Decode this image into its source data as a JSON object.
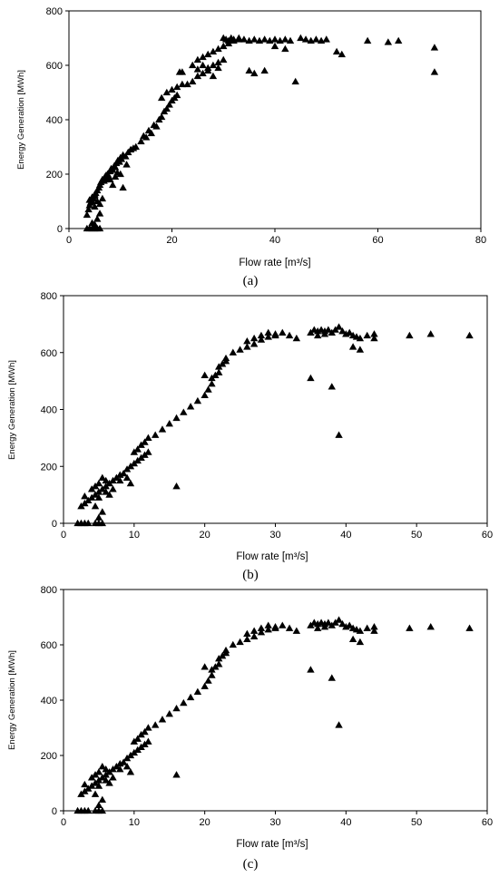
{
  "chart_data": [
    {
      "type": "scatter",
      "caption": "(a)",
      "xlabel": "Flow rate [m³/s]",
      "ylabel": "Energy Generation [MWh]",
      "xlim": [
        0,
        80
      ],
      "ylim": [
        0,
        800
      ],
      "xticks": [
        "0",
        "20",
        "40",
        "60",
        "80"
      ],
      "yticks": [
        "0",
        "200",
        "400",
        "600",
        "800"
      ],
      "grid": false,
      "marker": "triangle",
      "points": [
        [
          3.5,
          0
        ],
        [
          4,
          0
        ],
        [
          4.5,
          0
        ],
        [
          5,
          0
        ],
        [
          5.5,
          0
        ],
        [
          6,
          0
        ],
        [
          5,
          15
        ],
        [
          5.5,
          35
        ],
        [
          6,
          55
        ],
        [
          4.5,
          20
        ],
        [
          3.5,
          50
        ],
        [
          3.8,
          70
        ],
        [
          4,
          85
        ],
        [
          4.2,
          95
        ],
        [
          4.5,
          100
        ],
        [
          4.8,
          110
        ],
        [
          5,
          120
        ],
        [
          5.2,
          130
        ],
        [
          5.5,
          140
        ],
        [
          5.8,
          150
        ],
        [
          6,
          160
        ],
        [
          6.2,
          170
        ],
        [
          6.5,
          180
        ],
        [
          4,
          105
        ],
        [
          4.5,
          115
        ],
        [
          5,
          125
        ],
        [
          5.5,
          100
        ],
        [
          6,
          90
        ],
        [
          6.5,
          110
        ],
        [
          5,
          80
        ],
        [
          7,
          180
        ],
        [
          7.2,
          195
        ],
        [
          7.5,
          200
        ],
        [
          7.8,
          190
        ],
        [
          8,
          210
        ],
        [
          8.2,
          220
        ],
        [
          8.5,
          215
        ],
        [
          8.8,
          230
        ],
        [
          9,
          225
        ],
        [
          9.2,
          240
        ],
        [
          9.5,
          250
        ],
        [
          9.8,
          245
        ],
        [
          10,
          260
        ],
        [
          10.2,
          255
        ],
        [
          10.5,
          270
        ],
        [
          11,
          265
        ],
        [
          11.5,
          280
        ],
        [
          12,
          290
        ],
        [
          12.5,
          295
        ],
        [
          13,
          300
        ],
        [
          8,
          180
        ],
        [
          9,
          190
        ],
        [
          10,
          200
        ],
        [
          10.5,
          150
        ],
        [
          8.5,
          160
        ],
        [
          7,
          190
        ],
        [
          6.8,
          175
        ],
        [
          7.6,
          185
        ],
        [
          9.4,
          205
        ],
        [
          11.2,
          235
        ],
        [
          14,
          320
        ],
        [
          14.5,
          340
        ],
        [
          15,
          335
        ],
        [
          15.5,
          360
        ],
        [
          16,
          350
        ],
        [
          16.5,
          380
        ],
        [
          17,
          375
        ],
        [
          17.5,
          400
        ],
        [
          18,
          410
        ],
        [
          18.5,
          430
        ],
        [
          19,
          440
        ],
        [
          19.5,
          455
        ],
        [
          20,
          470
        ],
        [
          20.5,
          480
        ],
        [
          21,
          490
        ],
        [
          18,
          480
        ],
        [
          19,
          500
        ],
        [
          20,
          510
        ],
        [
          21,
          520
        ],
        [
          22,
          530
        ],
        [
          21.5,
          575
        ],
        [
          22,
          575
        ],
        [
          23,
          530
        ],
        [
          24,
          540
        ],
        [
          25,
          560
        ],
        [
          26,
          570
        ],
        [
          27,
          590
        ],
        [
          28,
          600
        ],
        [
          29,
          610
        ],
        [
          30,
          620
        ],
        [
          24,
          600
        ],
        [
          25,
          620
        ],
        [
          26,
          630
        ],
        [
          27,
          640
        ],
        [
          28,
          650
        ],
        [
          29,
          660
        ],
        [
          30,
          670
        ],
        [
          31,
          680
        ],
        [
          32,
          690
        ],
        [
          33,
          695
        ],
        [
          30,
          700
        ],
        [
          30.5,
          695
        ],
        [
          31,
          690
        ],
        [
          31.5,
          700
        ],
        [
          32,
          695
        ],
        [
          33,
          700
        ],
        [
          34,
          695
        ],
        [
          35,
          690
        ],
        [
          36,
          695
        ],
        [
          37,
          690
        ],
        [
          38,
          695
        ],
        [
          39,
          690
        ],
        [
          40,
          695
        ],
        [
          41,
          690
        ],
        [
          42,
          695
        ],
        [
          43,
          690
        ],
        [
          45,
          700
        ],
        [
          46,
          695
        ],
        [
          47,
          690
        ],
        [
          48,
          695
        ],
        [
          49,
          690
        ],
        [
          50,
          695
        ],
        [
          52,
          650
        ],
        [
          53,
          640
        ],
        [
          58,
          690
        ],
        [
          62,
          685
        ],
        [
          64,
          690
        ],
        [
          71,
          665
        ],
        [
          71,
          575
        ],
        [
          44,
          540
        ],
        [
          35,
          580
        ],
        [
          36,
          570
        ],
        [
          38,
          580
        ],
        [
          40,
          670
        ],
        [
          42,
          660
        ],
        [
          27,
          580
        ],
        [
          28,
          560
        ],
        [
          29,
          590
        ],
        [
          26,
          600
        ],
        [
          25,
          585
        ]
      ]
    },
    {
      "type": "scatter",
      "caption": "(b)",
      "xlabel": "Flow rate [m³/s]",
      "ylabel": "Energy Generation [MWh]",
      "xlim": [
        0,
        60
      ],
      "ylim": [
        0,
        800
      ],
      "xticks": [
        "0",
        "10",
        "20",
        "30",
        "40",
        "50",
        "60"
      ],
      "yticks": [
        "0",
        "200",
        "400",
        "600",
        "800"
      ],
      "grid": false,
      "marker": "triangle",
      "points": [
        [
          2,
          0
        ],
        [
          2.5,
          0
        ],
        [
          3,
          0
        ],
        [
          3.5,
          0
        ],
        [
          4.5,
          0
        ],
        [
          5,
          0
        ],
        [
          5.5,
          0
        ],
        [
          5,
          20
        ],
        [
          5.5,
          40
        ],
        [
          4.5,
          60
        ],
        [
          2.5,
          60
        ],
        [
          3,
          70
        ],
        [
          3.5,
          80
        ],
        [
          4,
          90
        ],
        [
          4.5,
          100
        ],
        [
          5,
          110
        ],
        [
          5.5,
          120
        ],
        [
          6,
          130
        ],
        [
          6.5,
          140
        ],
        [
          7,
          150
        ],
        [
          3,
          95
        ],
        [
          4,
          120
        ],
        [
          5,
          140
        ],
        [
          5.5,
          160
        ],
        [
          6,
          110
        ],
        [
          6.5,
          100
        ],
        [
          7,
          120
        ],
        [
          4.5,
          130
        ],
        [
          5,
          90
        ],
        [
          6,
          150
        ],
        [
          7.5,
          160
        ],
        [
          8,
          170
        ],
        [
          8.5,
          175
        ],
        [
          9,
          190
        ],
        [
          9.5,
          200
        ],
        [
          10,
          210
        ],
        [
          10.5,
          220
        ],
        [
          11,
          230
        ],
        [
          11.5,
          240
        ],
        [
          12,
          250
        ],
        [
          8,
          150
        ],
        [
          9,
          160
        ],
        [
          9.5,
          140
        ],
        [
          10,
          250
        ],
        [
          10.5,
          260
        ],
        [
          11,
          275
        ],
        [
          11.5,
          285
        ],
        [
          12,
          300
        ],
        [
          13,
          310
        ],
        [
          14,
          330
        ],
        [
          15,
          350
        ],
        [
          16,
          370
        ],
        [
          17,
          390
        ],
        [
          18,
          410
        ],
        [
          19,
          430
        ],
        [
          20,
          450
        ],
        [
          20.5,
          470
        ],
        [
          21,
          490
        ],
        [
          21.5,
          520
        ],
        [
          22,
          530
        ],
        [
          22.5,
          560
        ],
        [
          23,
          580
        ],
        [
          24,
          600
        ],
        [
          25,
          610
        ],
        [
          26,
          620
        ],
        [
          27,
          630
        ],
        [
          28,
          645
        ],
        [
          29,
          655
        ],
        [
          30,
          665
        ],
        [
          31,
          670
        ],
        [
          16,
          130
        ],
        [
          20,
          520
        ],
        [
          21,
          510
        ],
        [
          22,
          550
        ],
        [
          23,
          570
        ],
        [
          26,
          640
        ],
        [
          27,
          650
        ],
        [
          28,
          660
        ],
        [
          29,
          670
        ],
        [
          30,
          660
        ],
        [
          32,
          660
        ],
        [
          33,
          650
        ],
        [
          35,
          670
        ],
        [
          35.5,
          680
        ],
        [
          36,
          675
        ],
        [
          36.5,
          680
        ],
        [
          37,
          675
        ],
        [
          37.5,
          680
        ],
        [
          38,
          670
        ],
        [
          38.5,
          680
        ],
        [
          39,
          690
        ],
        [
          39.5,
          675
        ],
        [
          40,
          665
        ],
        [
          40.5,
          670
        ],
        [
          41,
          660
        ],
        [
          41.5,
          655
        ],
        [
          42,
          650
        ],
        [
          43,
          660
        ],
        [
          44,
          665
        ],
        [
          44,
          650
        ],
        [
          35,
          510
        ],
        [
          38,
          480
        ],
        [
          39,
          310
        ],
        [
          41,
          620
        ],
        [
          42,
          610
        ],
        [
          49,
          660
        ],
        [
          52,
          665
        ],
        [
          57.5,
          660
        ],
        [
          36,
          660
        ],
        [
          37,
          665
        ]
      ]
    },
    {
      "type": "scatter",
      "caption": "(c)",
      "xlabel": "Flow rate [m³/s]",
      "ylabel": "Energy Generation [MWh]",
      "xlim": [
        0,
        60
      ],
      "ylim": [
        0,
        800
      ],
      "xticks": [
        "0",
        "10",
        "20",
        "30",
        "40",
        "50",
        "60"
      ],
      "yticks": [
        "0",
        "200",
        "400",
        "600",
        "800"
      ],
      "grid": false,
      "marker": "triangle",
      "points": [
        [
          2,
          0
        ],
        [
          2.5,
          0
        ],
        [
          3,
          0
        ],
        [
          3.5,
          0
        ],
        [
          4.5,
          0
        ],
        [
          5,
          0
        ],
        [
          5.5,
          0
        ],
        [
          5,
          20
        ],
        [
          5.5,
          40
        ],
        [
          4.5,
          60
        ],
        [
          2.5,
          60
        ],
        [
          3,
          70
        ],
        [
          3.5,
          80
        ],
        [
          4,
          90
        ],
        [
          4.5,
          100
        ],
        [
          5,
          110
        ],
        [
          5.5,
          120
        ],
        [
          6,
          130
        ],
        [
          6.5,
          140
        ],
        [
          7,
          150
        ],
        [
          3,
          95
        ],
        [
          4,
          120
        ],
        [
          5,
          140
        ],
        [
          5.5,
          160
        ],
        [
          6,
          110
        ],
        [
          6.5,
          100
        ],
        [
          7,
          120
        ],
        [
          4.5,
          130
        ],
        [
          5,
          90
        ],
        [
          6,
          150
        ],
        [
          7.5,
          160
        ],
        [
          8,
          170
        ],
        [
          8.5,
          175
        ],
        [
          9,
          190
        ],
        [
          9.5,
          200
        ],
        [
          10,
          210
        ],
        [
          10.5,
          220
        ],
        [
          11,
          230
        ],
        [
          11.5,
          240
        ],
        [
          12,
          250
        ],
        [
          8,
          150
        ],
        [
          9,
          160
        ],
        [
          9.5,
          140
        ],
        [
          10,
          250
        ],
        [
          10.5,
          260
        ],
        [
          11,
          275
        ],
        [
          11.5,
          285
        ],
        [
          12,
          300
        ],
        [
          13,
          310
        ],
        [
          14,
          330
        ],
        [
          15,
          350
        ],
        [
          16,
          370
        ],
        [
          17,
          390
        ],
        [
          18,
          410
        ],
        [
          19,
          430
        ],
        [
          20,
          450
        ],
        [
          20.5,
          470
        ],
        [
          21,
          490
        ],
        [
          21.5,
          520
        ],
        [
          22,
          530
        ],
        [
          22.5,
          560
        ],
        [
          23,
          580
        ],
        [
          24,
          600
        ],
        [
          25,
          610
        ],
        [
          26,
          620
        ],
        [
          27,
          630
        ],
        [
          28,
          645
        ],
        [
          29,
          655
        ],
        [
          30,
          665
        ],
        [
          31,
          670
        ],
        [
          16,
          130
        ],
        [
          20,
          520
        ],
        [
          21,
          510
        ],
        [
          22,
          550
        ],
        [
          23,
          570
        ],
        [
          26,
          640
        ],
        [
          27,
          650
        ],
        [
          28,
          660
        ],
        [
          29,
          670
        ],
        [
          30,
          660
        ],
        [
          32,
          660
        ],
        [
          33,
          650
        ],
        [
          35,
          670
        ],
        [
          35.5,
          680
        ],
        [
          36,
          675
        ],
        [
          36.5,
          680
        ],
        [
          37,
          675
        ],
        [
          37.5,
          680
        ],
        [
          38,
          670
        ],
        [
          38.5,
          680
        ],
        [
          39,
          690
        ],
        [
          39.5,
          675
        ],
        [
          40,
          665
        ],
        [
          40.5,
          670
        ],
        [
          41,
          660
        ],
        [
          41.5,
          655
        ],
        [
          42,
          650
        ],
        [
          43,
          660
        ],
        [
          44,
          665
        ],
        [
          44,
          650
        ],
        [
          35,
          510
        ],
        [
          38,
          480
        ],
        [
          39,
          310
        ],
        [
          41,
          620
        ],
        [
          42,
          610
        ],
        [
          49,
          660
        ],
        [
          52,
          665
        ],
        [
          57.5,
          660
        ],
        [
          36,
          660
        ],
        [
          37,
          665
        ]
      ]
    }
  ]
}
